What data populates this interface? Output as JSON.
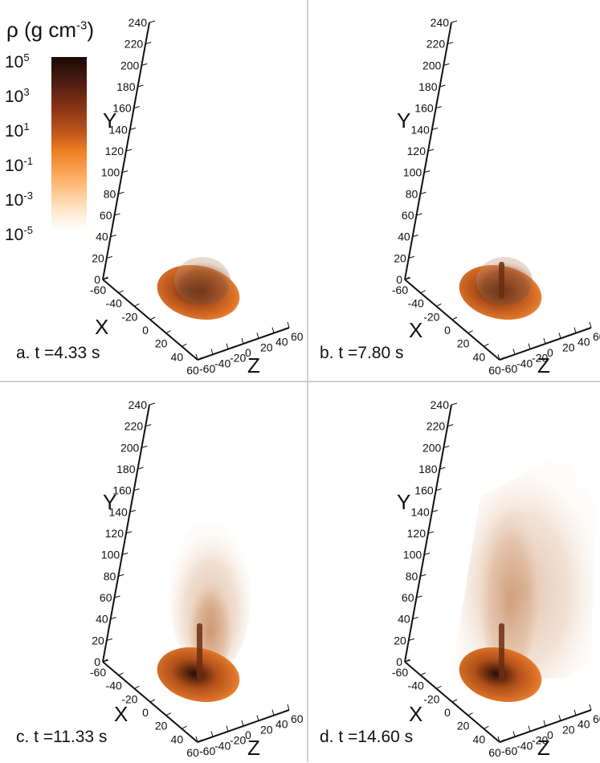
{
  "colorbar": {
    "title_prefix": "ρ (g cm",
    "title_exp": "-3",
    "title_suffix": ")",
    "ticks": [
      {
        "base": "10",
        "exp": "5"
      },
      {
        "base": "10",
        "exp": "3"
      },
      {
        "base": "10",
        "exp": "1"
      },
      {
        "base": "10",
        "exp": "-1"
      },
      {
        "base": "10",
        "exp": "-3"
      },
      {
        "base": "10",
        "exp": "-5"
      }
    ]
  },
  "axes": {
    "y_label": "Y",
    "x_label": "X",
    "z_label": "Z",
    "y_ticks": [
      "0",
      "20",
      "40",
      "60",
      "80",
      "100",
      "120",
      "140",
      "160",
      "180",
      "200",
      "220",
      "240"
    ],
    "x_ticks": [
      "-60",
      "-40",
      "-20",
      "0",
      "20",
      "40",
      "60"
    ],
    "z_ticks": [
      "-60",
      "-40",
      "-20",
      "0",
      "20",
      "40",
      "60"
    ]
  },
  "panels": [
    {
      "caption": "a. t =4.33 s"
    },
    {
      "caption": "b. t =7.80 s"
    },
    {
      "caption": "c. t =11.33 s"
    },
    {
      "caption": "d. t =14.60 s"
    }
  ],
  "colors": {
    "dense": "#2a0d06",
    "mid": "#b2501a",
    "low": "#f2a05a",
    "faint": "#f6e3d2"
  }
}
